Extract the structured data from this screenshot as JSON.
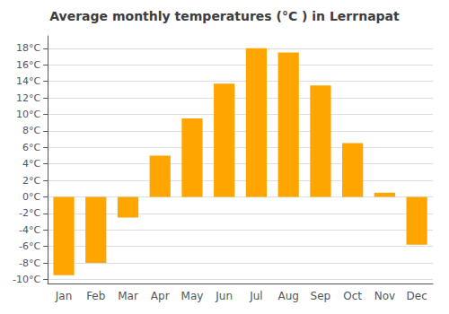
{
  "chart_data": {
    "type": "bar",
    "title": "Average monthly temperatures (°C ) in Lerrnapat",
    "categories": [
      "Jan",
      "Feb",
      "Mar",
      "Apr",
      "May",
      "Jun",
      "Jul",
      "Aug",
      "Sep",
      "Oct",
      "Nov",
      "Dec"
    ],
    "values": [
      -9.5,
      -8.0,
      -2.5,
      5.0,
      9.5,
      13.7,
      18.0,
      17.5,
      13.5,
      6.5,
      0.5,
      -5.8
    ],
    "color": "#FFA500",
    "ylim": [
      -10.5,
      19.5
    ],
    "yticks": [
      {
        "value": -10,
        "label": "-10°C"
      },
      {
        "value": -8,
        "label": "-8°C"
      },
      {
        "value": -6,
        "label": "-6°C"
      },
      {
        "value": -4,
        "label": "-4°C"
      },
      {
        "value": -2,
        "label": "-2°C"
      },
      {
        "value": 0,
        "label": "0°C"
      },
      {
        "value": 2,
        "label": "2°C"
      },
      {
        "value": 4,
        "label": "4°C"
      },
      {
        "value": 6,
        "label": "6°C"
      },
      {
        "value": 8,
        "label": "8°C"
      },
      {
        "value": 10,
        "label": "10°C"
      },
      {
        "value": 12,
        "label": "12°C"
      },
      {
        "value": 14,
        "label": "14°C"
      },
      {
        "value": 16,
        "label": "16°C"
      },
      {
        "value": 18,
        "label": "18°C"
      }
    ],
    "grid": true
  }
}
